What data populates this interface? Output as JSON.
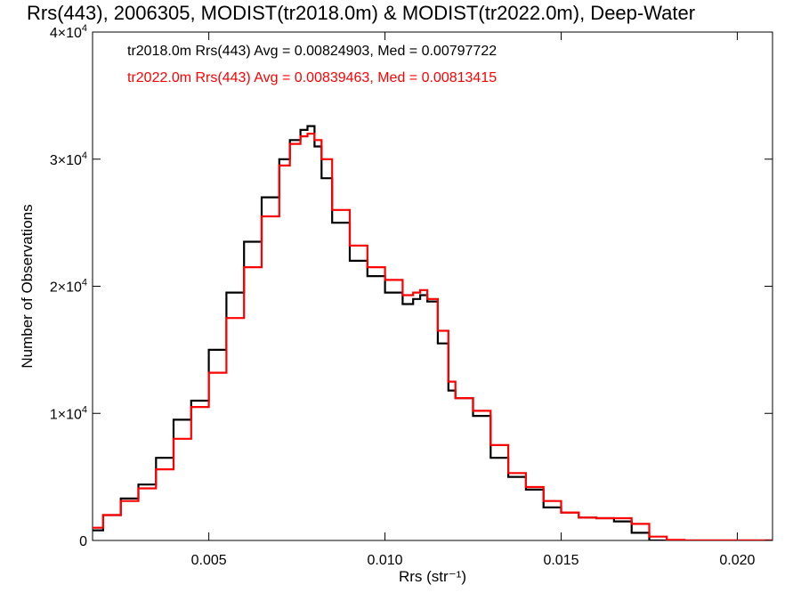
{
  "chart_data": {
    "type": "line",
    "title": "Rrs(443), 2006305, MODIST(tr2018.0m) & MODIST(tr2022.0m), Deep-Water",
    "xlabel": "Rrs (str⁻¹)",
    "ylabel": "Number of Observations",
    "xlim": [
      0.0017,
      0.021
    ],
    "ylim": [
      0,
      40000
    ],
    "x_ticks": [
      0.005,
      0.01,
      0.015,
      0.02
    ],
    "x_tick_labels": [
      "0.005",
      "0.010",
      "0.015",
      "0.020"
    ],
    "y_ticks": [
      0,
      10000,
      20000,
      30000,
      40000
    ],
    "y_tick_labels": [
      {
        "mantissa": "0",
        "exp": ""
      },
      {
        "mantissa": "1×10",
        "exp": "4"
      },
      {
        "mantissa": "2×10",
        "exp": "4"
      },
      {
        "mantissa": "3×10",
        "exp": "4"
      },
      {
        "mantissa": "4×10",
        "exp": "4"
      }
    ],
    "annotations": [
      "tr2018.0m Rrs(443) Avg = 0.00824903, Med = 0.00797722",
      "tr2022.0m Rrs(443) Avg = 0.00839463, Med = 0.00813415"
    ],
    "series": [
      {
        "color": "#000000",
        "x": [
          0.0017,
          0.002,
          0.0025,
          0.003,
          0.0035,
          0.004,
          0.0045,
          0.005,
          0.0055,
          0.006,
          0.0065,
          0.007,
          0.0073,
          0.0076,
          0.0078,
          0.008,
          0.0082,
          0.0085,
          0.009,
          0.0095,
          0.01,
          0.0105,
          0.0108,
          0.011,
          0.0112,
          0.0115,
          0.0118,
          0.012,
          0.0125,
          0.013,
          0.0135,
          0.014,
          0.0145,
          0.015,
          0.0155,
          0.016,
          0.0165,
          0.017,
          0.0175,
          0.018,
          0.0185,
          0.019,
          0.02,
          0.021
        ],
        "y": [
          800,
          2000,
          3300,
          4400,
          6500,
          9500,
          11000,
          15000,
          19500,
          23500,
          27000,
          30000,
          31500,
          32300,
          32600,
          31000,
          28500,
          25000,
          22000,
          20800,
          19500,
          18600,
          19000,
          19300,
          18800,
          15500,
          11800,
          11200,
          9800,
          6500,
          5000,
          4000,
          2600,
          2200,
          1800,
          1750,
          1500,
          600,
          0,
          0,
          0,
          0,
          0,
          0
        ]
      },
      {
        "color": "#ff0000",
        "x": [
          0.0017,
          0.002,
          0.0025,
          0.003,
          0.0035,
          0.004,
          0.0045,
          0.005,
          0.0055,
          0.006,
          0.0065,
          0.007,
          0.0073,
          0.0076,
          0.0078,
          0.008,
          0.0082,
          0.0085,
          0.009,
          0.0095,
          0.01,
          0.0105,
          0.0108,
          0.011,
          0.0112,
          0.0115,
          0.0118,
          0.012,
          0.0125,
          0.013,
          0.0135,
          0.014,
          0.0145,
          0.015,
          0.0155,
          0.016,
          0.0165,
          0.017,
          0.0175,
          0.018,
          0.0185,
          0.019,
          0.02,
          0.021
        ],
        "y": [
          1000,
          2000,
          3100,
          4100,
          5600,
          8000,
          10500,
          13200,
          17500,
          21500,
          25500,
          29500,
          31200,
          31800,
          32000,
          31500,
          30000,
          26000,
          23200,
          21500,
          20500,
          19300,
          19500,
          19700,
          19000,
          16500,
          12500,
          11200,
          10200,
          7500,
          5300,
          4200,
          3100,
          2200,
          1800,
          1750,
          1750,
          1300,
          300,
          50,
          0,
          0,
          0,
          0
        ]
      }
    ],
    "grid": false,
    "legend": "top-left"
  }
}
